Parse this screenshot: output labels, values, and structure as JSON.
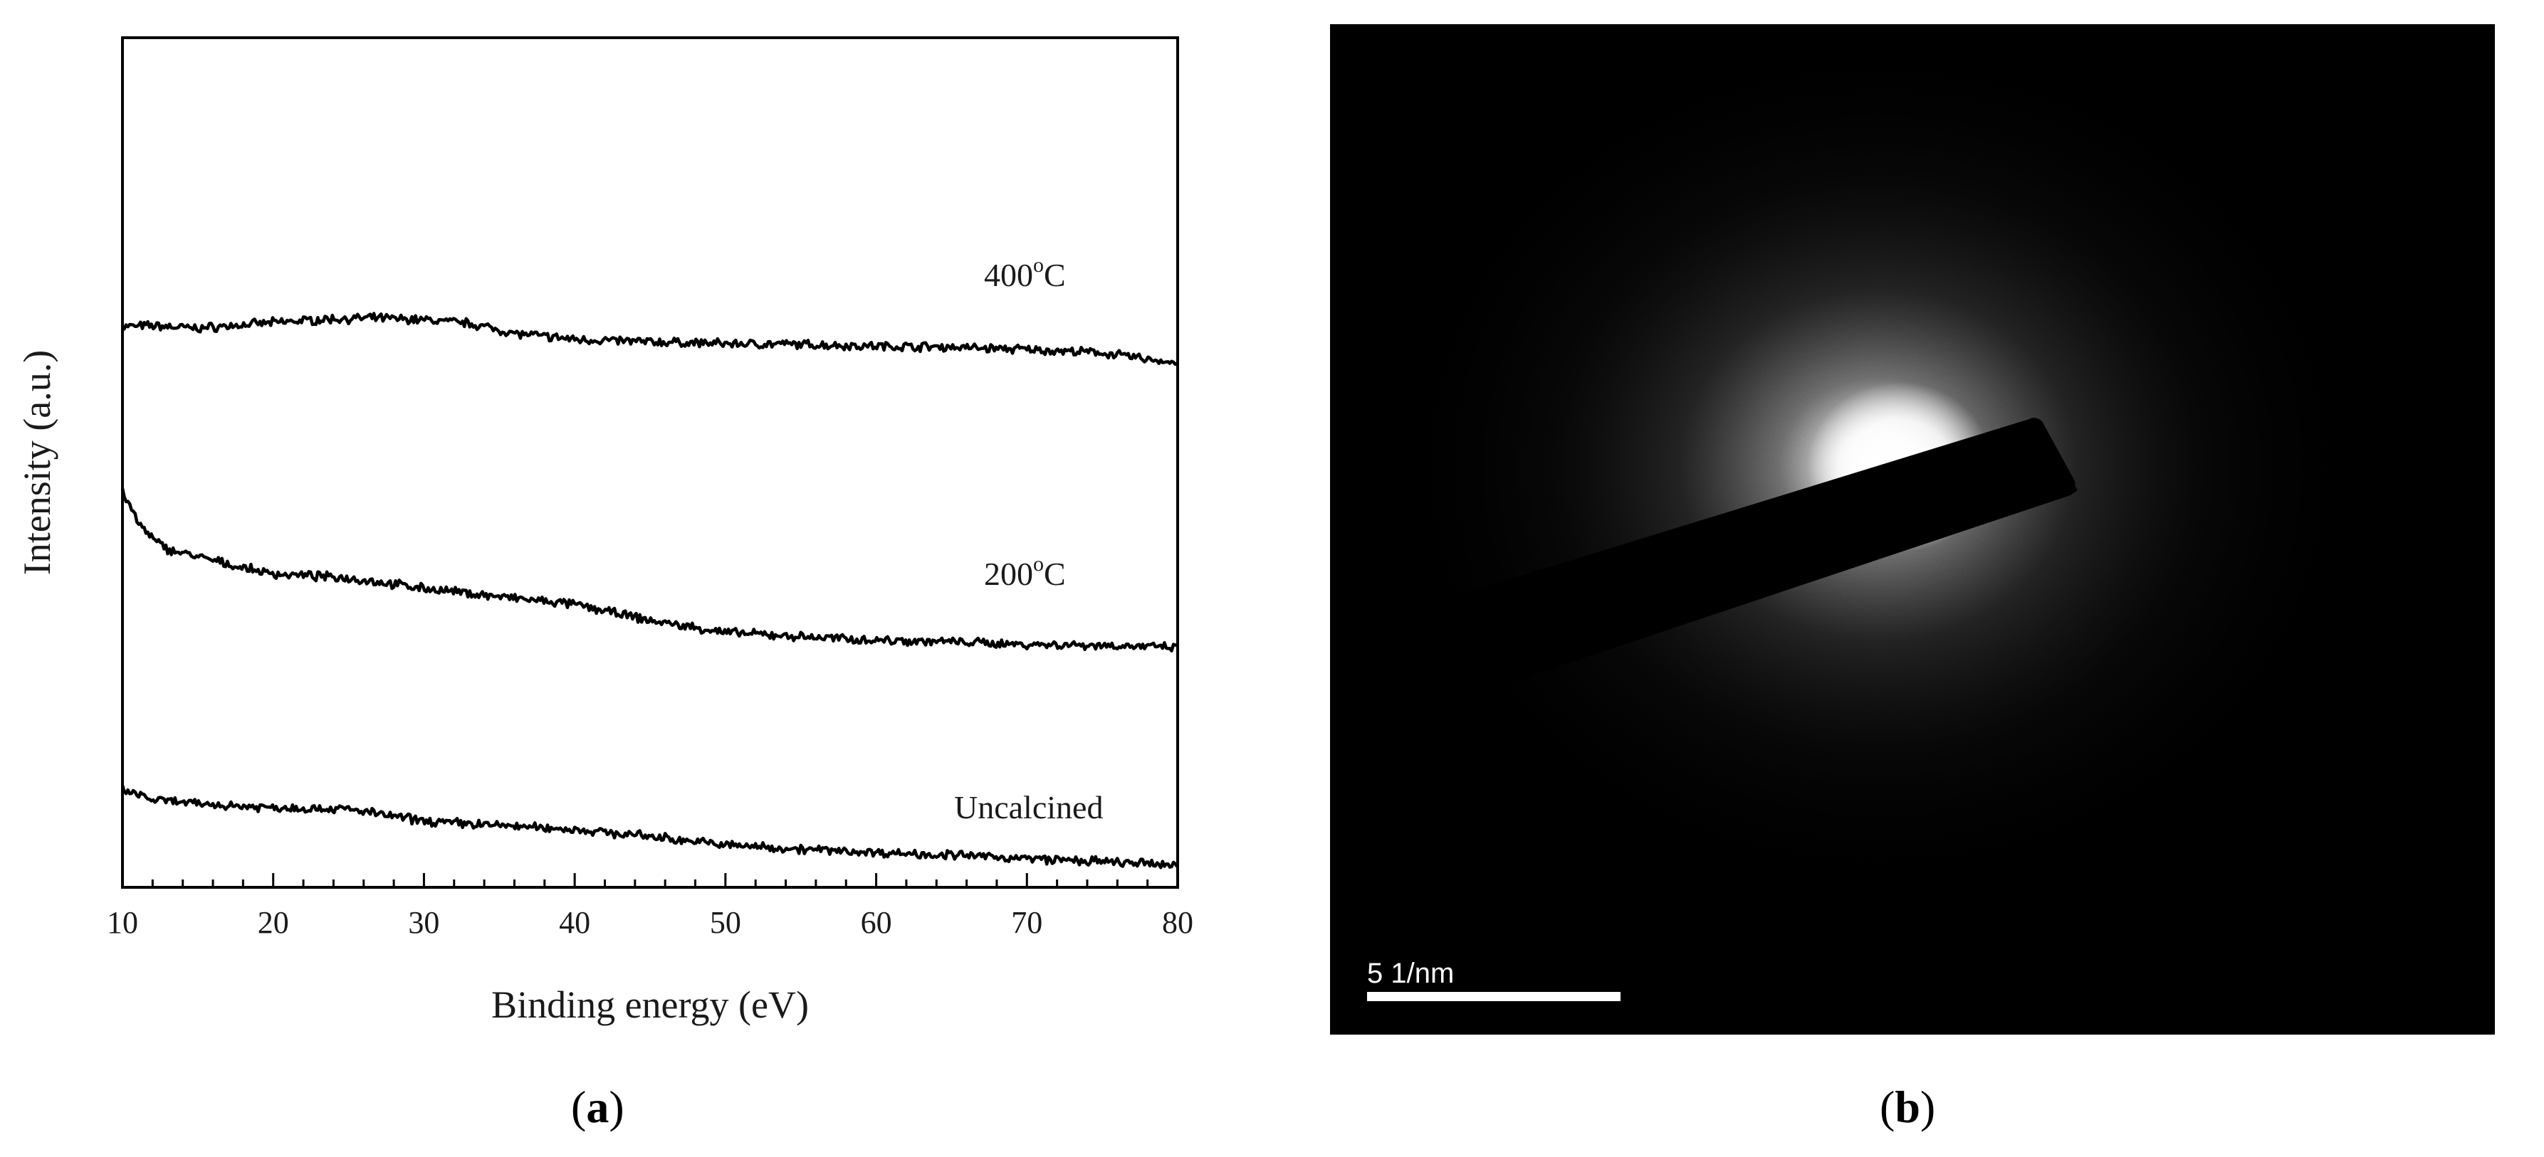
{
  "chart_data": {
    "type": "line",
    "title": "",
    "xlabel": "Binding energy (eV)",
    "ylabel": "Intensity (a.u.)",
    "xlim": [
      10,
      80
    ],
    "x_ticks": [
      "10",
      "20",
      "30",
      "40",
      "50",
      "60",
      "70",
      "80"
    ],
    "y_ticks_labeled": false,
    "grid": false,
    "legend": "none",
    "series": [
      {
        "name": "400°C",
        "label_base": "400",
        "label_sup": "o",
        "label_unit": "C",
        "x": [
          10,
          12,
          15,
          18,
          21,
          24,
          27,
          30,
          33,
          36,
          40,
          45,
          50,
          55,
          60,
          65,
          70,
          75,
          80
        ],
        "y": [
          0.66,
          0.661,
          0.658,
          0.662,
          0.666,
          0.669,
          0.67,
          0.668,
          0.664,
          0.652,
          0.645,
          0.642,
          0.64,
          0.639,
          0.637,
          0.636,
          0.633,
          0.629,
          0.617
        ]
      },
      {
        "name": "200°C",
        "label_base": "200",
        "label_sup": "o",
        "label_unit": "C",
        "x": [
          10,
          11,
          12,
          13,
          15,
          18,
          20,
          25,
          30,
          35,
          40,
          45,
          50,
          55,
          60,
          65,
          70,
          75,
          80
        ],
        "y": [
          0.466,
          0.43,
          0.41,
          0.398,
          0.389,
          0.376,
          0.369,
          0.364,
          0.352,
          0.342,
          0.333,
          0.314,
          0.3,
          0.295,
          0.291,
          0.289,
          0.286,
          0.285,
          0.282
        ]
      },
      {
        "name": "Uncalcined",
        "label_base": "Uncalcined",
        "label_sup": "",
        "label_unit": "",
        "x": [
          10,
          12,
          15,
          20,
          25,
          30,
          35,
          40,
          45,
          50,
          55,
          60,
          65,
          70,
          75,
          80
        ],
        "y": [
          0.115,
          0.103,
          0.098,
          0.094,
          0.092,
          0.078,
          0.073,
          0.068,
          0.06,
          0.05,
          0.045,
          0.041,
          0.038,
          0.034,
          0.03,
          0.026
        ]
      }
    ]
  },
  "panel_b": {
    "scale_bar_label": "5 1/nm",
    "background_color": "#000000",
    "beam_color": "#ffffff"
  },
  "captions": {
    "a_open": "(",
    "a_letter": "a",
    "a_close": ")",
    "b_open": "(",
    "b_letter": "b",
    "b_close": ")"
  }
}
